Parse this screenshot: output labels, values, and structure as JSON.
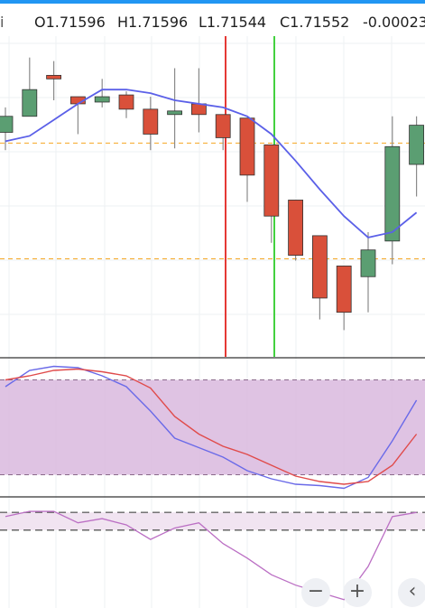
{
  "header": {
    "symbol_fragment": "i",
    "open": "O1.71596",
    "high": "H1.71596",
    "low": "L1.71544",
    "close": "C1.71552",
    "change": "-0.00023"
  },
  "colors": {
    "bull": "#5b9e72",
    "bear": "#d9503a",
    "moving_average": "#5b60e8",
    "stoch_k": "#6a6ae8",
    "stoch_d": "#e04b4b",
    "stoch_band": "#dcbde0",
    "osc_band": "#f1e4f1",
    "osc_line": "#bb6fc4",
    "level_line": "#f5a623",
    "marker_red": "#e53935",
    "marker_green": "#43d13f",
    "accent": "#2196f3"
  },
  "chart_data": [
    {
      "type": "candlestick",
      "candles": [
        {
          "x": 0,
          "o": 1.7136,
          "h": 1.715,
          "l": 1.7126,
          "c": 1.7145
        },
        {
          "x": 1,
          "o": 1.7145,
          "h": 1.7178,
          "l": 1.7145,
          "c": 1.716
        },
        {
          "x": 2,
          "o": 1.7168,
          "h": 1.7176,
          "l": 1.7154,
          "c": 1.7166
        },
        {
          "x": 3,
          "o": 1.7156,
          "h": 1.7156,
          "l": 1.7135,
          "c": 1.7152
        },
        {
          "x": 4,
          "o": 1.7153,
          "h": 1.7166,
          "l": 1.715,
          "c": 1.7156
        },
        {
          "x": 5,
          "o": 1.7157,
          "h": 1.7159,
          "l": 1.7144,
          "c": 1.7149
        },
        {
          "x": 6,
          "o": 1.7149,
          "h": 1.7156,
          "l": 1.7126,
          "c": 1.7135
        },
        {
          "x": 7,
          "o": 1.7146,
          "h": 1.7172,
          "l": 1.7127,
          "c": 1.7148
        },
        {
          "x": 8,
          "o": 1.7152,
          "h": 1.7172,
          "l": 1.7136,
          "c": 1.7146
        },
        {
          "x": 9,
          "o": 1.7146,
          "h": 1.7146,
          "l": 1.7126,
          "c": 1.7133
        },
        {
          "x": 10,
          "o": 1.7144,
          "h": 1.7144,
          "l": 1.7097,
          "c": 1.7112
        },
        {
          "x": 11,
          "o": 1.7129,
          "h": 1.7129,
          "l": 1.7074,
          "c": 1.7089
        },
        {
          "x": 12,
          "o": 1.7098,
          "h": 1.7098,
          "l": 1.7064,
          "c": 1.7067
        },
        {
          "x": 13,
          "o": 1.7078,
          "h": 1.7078,
          "l": 1.7031,
          "c": 1.7043
        },
        {
          "x": 14,
          "o": 1.7061,
          "h": 1.7061,
          "l": 1.7025,
          "c": 1.7035
        },
        {
          "x": 15,
          "o": 1.7055,
          "h": 1.708,
          "l": 1.7035,
          "c": 1.707
        },
        {
          "x": 16,
          "o": 1.7075,
          "h": 1.7145,
          "l": 1.7062,
          "c": 1.7128
        },
        {
          "x": 17,
          "o": 1.7118,
          "h": 1.7145,
          "l": 1.71,
          "c": 1.714
        }
      ],
      "moving_average": [
        1.7131,
        1.7134,
        1.7143,
        1.7152,
        1.716,
        1.716,
        1.7158,
        1.7154,
        1.7152,
        1.715,
        1.7145,
        1.7135,
        1.712,
        1.7104,
        1.7089,
        1.7077,
        1.708,
        1.7091
      ],
      "levels": [
        1.713,
        1.7065
      ],
      "ylim": [
        1.701,
        1.719
      ]
    },
    {
      "type": "line",
      "ylim": [
        0,
        100
      ],
      "band": [
        15,
        85
      ],
      "series": [
        {
          "key": "k",
          "values": [
            80,
            92,
            95,
            94,
            88,
            80,
            62,
            42,
            35,
            28,
            18,
            12,
            8,
            7,
            5,
            13,
            40,
            70
          ]
        },
        {
          "key": "d",
          "values": [
            85,
            88,
            92,
            93,
            91,
            88,
            79,
            58,
            45,
            36,
            30,
            22,
            14,
            10,
            8,
            10,
            22,
            45
          ]
        }
      ]
    },
    {
      "type": "line",
      "ylim": [
        0,
        100
      ],
      "band": [
        75,
        92
      ],
      "series": [
        {
          "key": "osc",
          "values": [
            88,
            93,
            93,
            82,
            86,
            80,
            66,
            77,
            82,
            62,
            48,
            32,
            22,
            15,
            8,
            40,
            88,
            92
          ]
        }
      ]
    }
  ],
  "controls": {
    "zoom_out_icon": "minus-icon",
    "zoom_in_icon": "plus-icon",
    "scroll_left_icon": "chevron-left-icon",
    "zoom_out_glyph": "−",
    "zoom_in_glyph": "+",
    "scroll_left_glyph": "‹"
  }
}
